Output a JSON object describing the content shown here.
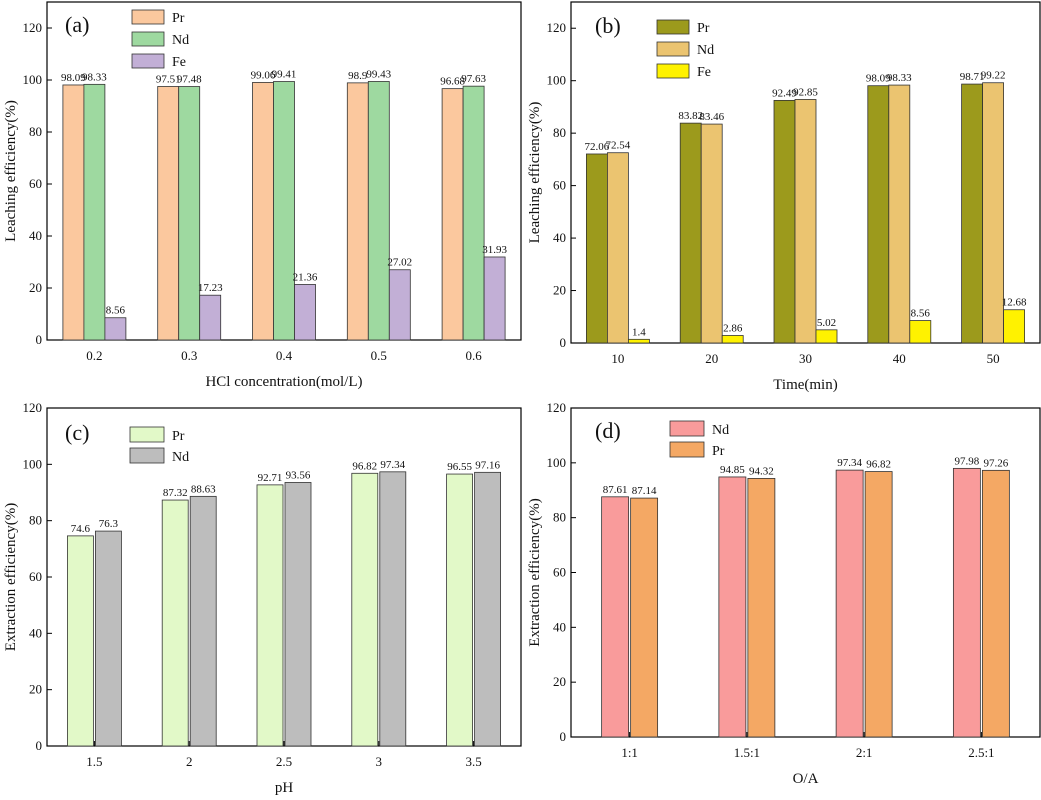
{
  "chart_data": [
    {
      "panel": "(a)",
      "type": "bar",
      "xlabel": "HCl concentration(mol/L)",
      "ylabel": "Leaching efficiency(%)",
      "ylim": [
        0,
        130
      ],
      "yticks": [
        0,
        20,
        40,
        60,
        80,
        100,
        120
      ],
      "categories": [
        "0.2",
        "0.3",
        "0.4",
        "0.5",
        "0.6"
      ],
      "legend_position": "top-left",
      "series": [
        {
          "name": "Pr",
          "color": "#FBC89E",
          "values": [
            98.09,
            97.51,
            99.06,
            98.9,
            96.68
          ],
          "labels": [
            "98.09",
            "97.51",
            "99.06",
            "98.9",
            "96.68"
          ]
        },
        {
          "name": "Nd",
          "color": "#9ED9A0",
          "values": [
            98.33,
            97.48,
            99.41,
            99.43,
            97.63
          ],
          "labels": [
            "98.33",
            "97.48",
            "99.41",
            "99.43",
            "97.63"
          ]
        },
        {
          "name": "Fe",
          "color": "#C2AFD6",
          "values": [
            8.56,
            17.23,
            21.36,
            27.02,
            31.93
          ],
          "labels": [
            "8.56",
            "17.23",
            "21.36",
            "27.02",
            "31.93"
          ]
        }
      ]
    },
    {
      "panel": "(b)",
      "type": "bar",
      "xlabel": "Time(min)",
      "ylabel": "Leaching efficiency(%)",
      "ylim": [
        0,
        130
      ],
      "yticks": [
        0,
        20,
        40,
        60,
        80,
        100,
        120
      ],
      "categories": [
        "10",
        "20",
        "30",
        "40",
        "50"
      ],
      "legend_position": "top-left",
      "series": [
        {
          "name": "Pr",
          "color": "#9C9A1C",
          "values": [
            72.06,
            83.82,
            92.49,
            98.09,
            98.71
          ],
          "labels": [
            "72.06",
            "83.82",
            "92.49",
            "98.09",
            "98.71"
          ]
        },
        {
          "name": "Nd",
          "color": "#EBC470",
          "values": [
            72.54,
            83.46,
            92.85,
            98.33,
            99.22
          ],
          "labels": [
            "72.54",
            "83.46",
            "92.85",
            "98.33",
            "99.22"
          ]
        },
        {
          "name": "Fe",
          "color": "#FFF200",
          "values": [
            1.4,
            2.86,
            5.02,
            8.56,
            12.68
          ],
          "labels": [
            "1.4",
            "2.86",
            "5.02",
            "8.56",
            "12.68"
          ]
        }
      ]
    },
    {
      "panel": "(c)",
      "type": "bar",
      "xlabel": "pH",
      "ylabel": "Extraction efficiency(%)",
      "ylim": [
        0,
        120
      ],
      "yticks": [
        0,
        20,
        40,
        60,
        80,
        100,
        120
      ],
      "categories": [
        "1.5",
        "2",
        "2.5",
        "3",
        "3.5"
      ],
      "legend_position": "top-left",
      "series": [
        {
          "name": "Pr",
          "color": "#E2F9C8",
          "values": [
            74.6,
            87.32,
            92.71,
            96.82,
            96.55
          ],
          "labels": [
            "74.6",
            "87.32",
            "92.71",
            "96.82",
            "96.55"
          ]
        },
        {
          "name": "Nd",
          "color": "#BDBDBD",
          "values": [
            76.3,
            88.63,
            93.56,
            97.34,
            97.16
          ],
          "labels": [
            "76.3",
            "88.63",
            "93.56",
            "97.34",
            "97.16"
          ]
        }
      ]
    },
    {
      "panel": "(d)",
      "type": "bar",
      "xlabel": "O/A",
      "ylabel": "Extraction efficiency(%)",
      "ylim": [
        0,
        120
      ],
      "yticks": [
        0,
        20,
        40,
        60,
        80,
        100,
        120
      ],
      "categories": [
        "1:1",
        "1.5:1",
        "2:1",
        "2.5:1"
      ],
      "legend_position": "top-left",
      "series": [
        {
          "name": "Nd",
          "color": "#F99B9B",
          "values": [
            87.61,
            94.85,
            97.34,
            97.98
          ],
          "labels": [
            "87.61",
            "94.85",
            "97.34",
            "97.98"
          ]
        },
        {
          "name": "Pr",
          "color": "#F4A864",
          "values": [
            87.14,
            94.32,
            96.82,
            97.26
          ],
          "labels": [
            "87.14",
            "94.32",
            "96.82",
            "97.26"
          ]
        }
      ]
    }
  ]
}
